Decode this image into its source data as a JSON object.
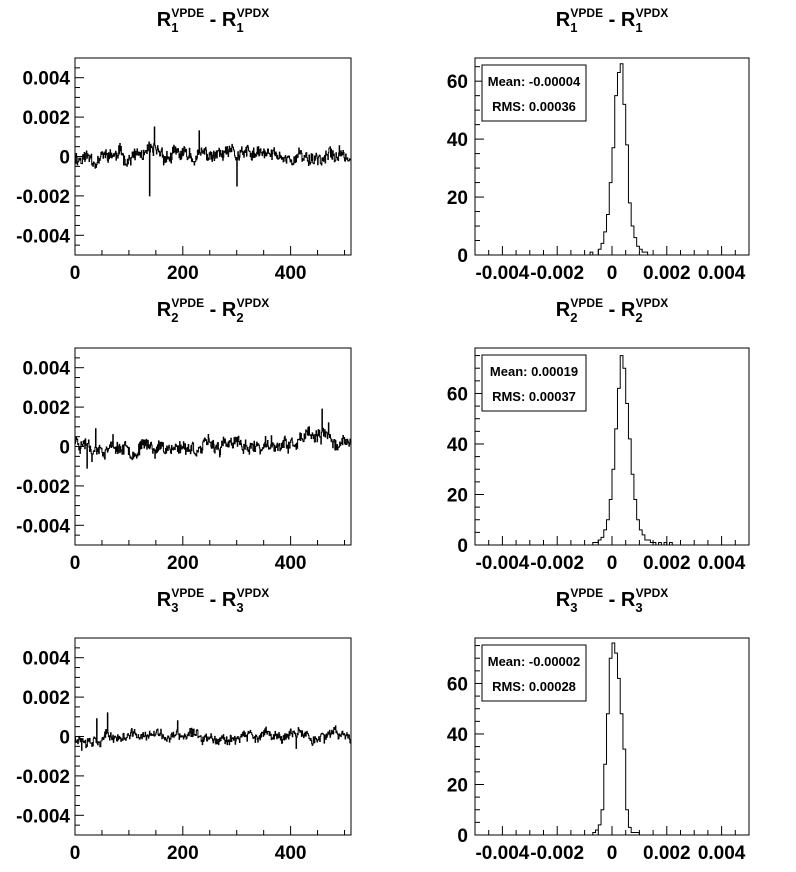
{
  "chart_data": [
    {
      "type": "line",
      "row": 0,
      "title": {
        "base": "R",
        "sub": "1",
        "sup": "VPDE",
        "minus": "-",
        "base2": "R",
        "sub2": "1",
        "sup2": "VPDX"
      },
      "xlim": [
        0,
        512
      ],
      "ylim": [
        -0.005,
        0.005
      ],
      "xticks": [
        "0",
        "200",
        "400"
      ],
      "yticks": [
        "0.004",
        "0.002",
        "0",
        "-0.002",
        "-0.004"
      ],
      "trace": {
        "n": 512,
        "rms": 0.00034,
        "seed": 11,
        "spikes": [
          [
            138,
            -0.002
          ],
          [
            147,
            0.0015
          ],
          [
            230,
            0.0013
          ],
          [
            300,
            -0.0015
          ],
          [
            340,
            0.0005
          ]
        ]
      }
    },
    {
      "type": "bar",
      "row": 0,
      "title": {
        "base": "R",
        "sub": "1",
        "sup": "VPDE",
        "minus": "-",
        "base2": "R",
        "sub2": "1",
        "sup2": "VPDX"
      },
      "xlim": [
        -0.005,
        0.005
      ],
      "ylim": [
        0,
        68
      ],
      "xticks": [
        "-0.004",
        "-0.002",
        "0",
        "0.002",
        "0.004"
      ],
      "yticks": [
        "60",
        "40",
        "20",
        "0"
      ],
      "stats": {
        "mean": "Mean: -0.00004",
        "rms": "RMS: 0.00036"
      },
      "bin_width": 0.0001,
      "bin_start": -0.0008,
      "values": [
        1,
        0,
        0,
        2,
        4,
        8,
        14,
        25,
        37,
        55,
        63,
        66,
        52,
        38,
        18,
        10,
        6,
        3,
        2,
        1,
        1
      ]
    },
    {
      "type": "line",
      "row": 1,
      "title": {
        "base": "R",
        "sub": "2",
        "sup": "VPDE",
        "minus": "-",
        "base2": "R",
        "sub2": "2",
        "sup2": "VPDX"
      },
      "xlim": [
        0,
        512
      ],
      "ylim": [
        -0.005,
        0.005
      ],
      "xticks": [
        "0",
        "200",
        "400"
      ],
      "yticks": [
        "0.004",
        "0.002",
        "0",
        "-0.002",
        "-0.004"
      ],
      "trace": {
        "n": 512,
        "rms": 0.00032,
        "seed": 23,
        "trend_from": 400,
        "trend_to": 512,
        "trend_amp": 0.0004,
        "spikes": [
          [
            22,
            -0.0011
          ],
          [
            38,
            0.0009
          ],
          [
            70,
            0.0006
          ],
          [
            458,
            0.0019
          ],
          [
            470,
            0.0012
          ]
        ]
      }
    },
    {
      "type": "bar",
      "row": 1,
      "title": {
        "base": "R",
        "sub": "2",
        "sup": "VPDE",
        "minus": "-",
        "base2": "R",
        "sub2": "2",
        "sup2": "VPDX"
      },
      "xlim": [
        -0.005,
        0.005
      ],
      "ylim": [
        0,
        78
      ],
      "xticks": [
        "-0.004",
        "-0.002",
        "0",
        "0.002",
        "0.004"
      ],
      "yticks": [
        "60",
        "40",
        "20",
        "0"
      ],
      "stats": {
        "mean": "Mean: 0.00019",
        "rms": "RMS: 0.00037"
      },
      "bin_width": 0.0001,
      "bin_start": -0.0007,
      "values": [
        1,
        1,
        2,
        3,
        6,
        10,
        18,
        30,
        46,
        62,
        75,
        70,
        56,
        42,
        28,
        18,
        10,
        6,
        4,
        2,
        2,
        1,
        1,
        0,
        1,
        0,
        1,
        0,
        1
      ]
    },
    {
      "type": "line",
      "row": 2,
      "title": {
        "base": "R",
        "sub": "3",
        "sup": "VPDE",
        "minus": "-",
        "base2": "R",
        "sub2": "3",
        "sup2": "VPDX"
      },
      "xlim": [
        0,
        512
      ],
      "ylim": [
        -0.005,
        0.005
      ],
      "xticks": [
        "0",
        "200",
        "400"
      ],
      "yticks": [
        "0.004",
        "0.002",
        "0",
        "-0.002",
        "-0.004"
      ],
      "trace": {
        "n": 512,
        "rms": 0.00024,
        "seed": 37,
        "spikes": [
          [
            12,
            -0.0007
          ],
          [
            40,
            0.0009
          ],
          [
            60,
            0.0012
          ],
          [
            190,
            0.0008
          ],
          [
            410,
            -0.0006
          ]
        ]
      }
    },
    {
      "type": "bar",
      "row": 2,
      "title": {
        "base": "R",
        "sub": "3",
        "sup": "VPDE",
        "minus": "-",
        "base2": "R",
        "sub2": "3",
        "sup2": "VPDX"
      },
      "xlim": [
        -0.005,
        0.005
      ],
      "ylim": [
        0,
        78
      ],
      "xticks": [
        "-0.004",
        "-0.002",
        "0",
        "0.002",
        "0.004"
      ],
      "yticks": [
        "60",
        "40",
        "20",
        "0"
      ],
      "stats": {
        "mean": "Mean: -0.00002",
        "rms": "RMS: 0.00028"
      },
      "bin_width": 0.0001,
      "bin_start": -0.0007,
      "values": [
        1,
        2,
        4,
        10,
        28,
        48,
        70,
        76,
        72,
        62,
        48,
        34,
        10,
        3,
        1,
        1,
        1
      ]
    }
  ]
}
